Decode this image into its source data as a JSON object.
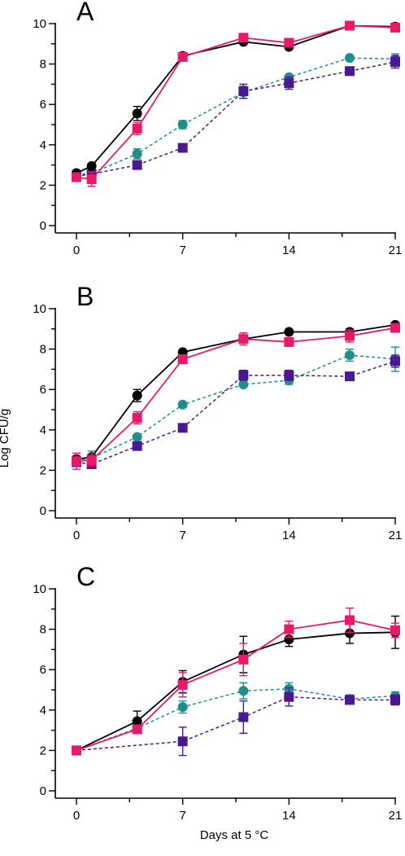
{
  "figure": {
    "ylabel": "Log CFU/g",
    "xlabel": "Days at 5 °C"
  },
  "colors": {
    "black": "#000000",
    "pink": "#e8196b",
    "teal": "#1e9089",
    "purple": "#4a1890"
  },
  "chart_data": [
    {
      "type": "line",
      "panel_label": "A",
      "xlabel": "",
      "ylabel": "",
      "xlim": [
        0,
        21
      ],
      "ylim": [
        0,
        10
      ],
      "x_ticks": [
        "0",
        "7",
        "14",
        "21"
      ],
      "y_ticks": [
        "0",
        "2",
        "4",
        "6",
        "8",
        "10"
      ],
      "grid": false,
      "series": [
        {
          "color": "black",
          "marker": "circle",
          "dash": false,
          "points": [
            [
              0,
              2.6,
              0.1
            ],
            [
              1,
              2.95,
              0.1
            ],
            [
              4,
              5.55,
              0.35
            ],
            [
              7,
              8.4,
              0.15
            ],
            [
              11,
              9.1,
              0.1
            ],
            [
              14,
              8.85,
              0.1
            ],
            [
              18,
              9.9,
              0.1
            ],
            [
              21,
              9.85,
              0.1
            ]
          ]
        },
        {
          "color": "pink",
          "marker": "square",
          "dash": false,
          "points": [
            [
              0,
              2.4,
              0.15
            ],
            [
              1,
              2.3,
              0.35
            ],
            [
              4,
              4.8,
              0.3
            ],
            [
              7,
              8.35,
              0.15
            ],
            [
              11,
              9.3,
              0.1
            ],
            [
              14,
              9.05,
              0.1
            ],
            [
              18,
              9.9,
              0.15
            ],
            [
              21,
              9.8,
              0.15
            ]
          ]
        },
        {
          "color": "teal",
          "marker": "circle",
          "dash": true,
          "points": [
            [
              0,
              2.5,
              0.1
            ],
            [
              1,
              2.6,
              0.1
            ],
            [
              4,
              3.55,
              0.25
            ],
            [
              7,
              5.0,
              0.2
            ],
            [
              11,
              6.6,
              0.3
            ],
            [
              14,
              7.35,
              0.1
            ],
            [
              18,
              8.3,
              0.1
            ],
            [
              21,
              8.25,
              0.25
            ]
          ]
        },
        {
          "color": "purple",
          "marker": "square",
          "dash": true,
          "points": [
            [
              0,
              2.45,
              0.1
            ],
            [
              1,
              2.55,
              0.1
            ],
            [
              4,
              3.0,
              0.15
            ],
            [
              7,
              3.85,
              0.1
            ],
            [
              11,
              6.65,
              0.35
            ],
            [
              14,
              7.05,
              0.3
            ],
            [
              18,
              7.65,
              0.15
            ],
            [
              21,
              8.1,
              0.3
            ]
          ]
        }
      ]
    },
    {
      "type": "line",
      "panel_label": "B",
      "xlabel": "",
      "ylabel": "Log CFU/g",
      "xlim": [
        0,
        21
      ],
      "ylim": [
        0,
        10
      ],
      "x_ticks": [
        "0",
        "7",
        "14",
        "21"
      ],
      "y_ticks": [
        "0",
        "2",
        "4",
        "6",
        "8",
        "10"
      ],
      "grid": false,
      "series": [
        {
          "color": "black",
          "marker": "circle",
          "dash": false,
          "points": [
            [
              0,
              2.55,
              0.15
            ],
            [
              1,
              2.65,
              0.15
            ],
            [
              4,
              5.7,
              0.3
            ],
            [
              7,
              7.85,
              0.1
            ],
            [
              11,
              8.5,
              0.2
            ],
            [
              14,
              8.85,
              0.1
            ],
            [
              18,
              8.85,
              0.15
            ],
            [
              21,
              9.2,
              0.1
            ]
          ]
        },
        {
          "color": "pink",
          "marker": "square",
          "dash": false,
          "points": [
            [
              0,
              2.45,
              0.4
            ],
            [
              1,
              2.5,
              0.3
            ],
            [
              4,
              4.6,
              0.3
            ],
            [
              7,
              7.5,
              0.15
            ],
            [
              11,
              8.5,
              0.3
            ],
            [
              14,
              8.35,
              0.15
            ],
            [
              18,
              8.65,
              0.3
            ],
            [
              21,
              9.05,
              0.15
            ]
          ]
        },
        {
          "color": "teal",
          "marker": "circle",
          "dash": true,
          "points": [
            [
              0,
              2.5,
              0.15
            ],
            [
              1,
              2.6,
              0.35
            ],
            [
              4,
              3.65,
              0.1
            ],
            [
              7,
              5.25,
              0.1
            ],
            [
              11,
              6.25,
              0.1
            ],
            [
              14,
              6.45,
              0.2
            ],
            [
              18,
              7.7,
              0.3
            ],
            [
              21,
              7.5,
              0.6
            ]
          ]
        },
        {
          "color": "purple",
          "marker": "square",
          "dash": true,
          "points": [
            [
              0,
              2.4,
              0.15
            ],
            [
              1,
              2.3,
              0.15
            ],
            [
              4,
              3.2,
              0.15
            ],
            [
              7,
              4.1,
              0.1
            ],
            [
              11,
              6.7,
              0.25
            ],
            [
              14,
              6.7,
              0.25
            ],
            [
              18,
              6.65,
              0.1
            ],
            [
              21,
              7.4,
              0.3
            ]
          ]
        }
      ]
    },
    {
      "type": "line",
      "panel_label": "C",
      "xlabel": "Days at 5 °C",
      "ylabel": "",
      "xlim": [
        0,
        21
      ],
      "ylim": [
        0,
        10
      ],
      "x_ticks": [
        "0",
        "7",
        "14",
        "21"
      ],
      "y_ticks": [
        "0",
        "2",
        "4",
        "6",
        "8",
        "10"
      ],
      "grid": false,
      "series": [
        {
          "color": "black",
          "marker": "circle",
          "dash": false,
          "points": [
            [
              0,
              2.0,
              0.05
            ],
            [
              4,
              3.45,
              0.5
            ],
            [
              7,
              5.4,
              0.55
            ],
            [
              11,
              6.75,
              0.9
            ],
            [
              14,
              7.5,
              0.35
            ],
            [
              18,
              7.8,
              0.5
            ],
            [
              21,
              7.85,
              0.8
            ]
          ]
        },
        {
          "color": "pink",
          "marker": "square",
          "dash": false,
          "points": [
            [
              0,
              2.0,
              0.05
            ],
            [
              4,
              3.05,
              0.2
            ],
            [
              7,
              5.25,
              0.6
            ],
            [
              11,
              6.5,
              0.8
            ],
            [
              14,
              8.0,
              0.4
            ],
            [
              18,
              8.45,
              0.6
            ],
            [
              21,
              7.95,
              0.35
            ]
          ]
        },
        {
          "color": "teal",
          "marker": "circle",
          "dash": true,
          "points": [
            [
              0,
              2.0,
              0.05
            ],
            [
              4,
              3.1,
              0.2
            ],
            [
              7,
              4.15,
              0.3
            ],
            [
              11,
              4.95,
              0.4
            ],
            [
              14,
              5.05,
              0.3
            ],
            [
              18,
              4.55,
              0.2
            ],
            [
              21,
              4.7,
              0.2
            ]
          ]
        },
        {
          "color": "purple",
          "marker": "square",
          "dash": true,
          "points": [
            [
              0,
              2.0,
              0.05
            ],
            [
              7,
              2.45,
              0.7
            ],
            [
              11,
              3.65,
              0.8
            ],
            [
              14,
              4.65,
              0.45
            ],
            [
              18,
              4.5,
              0.1
            ],
            [
              21,
              4.5,
              0.25
            ]
          ]
        }
      ]
    }
  ]
}
